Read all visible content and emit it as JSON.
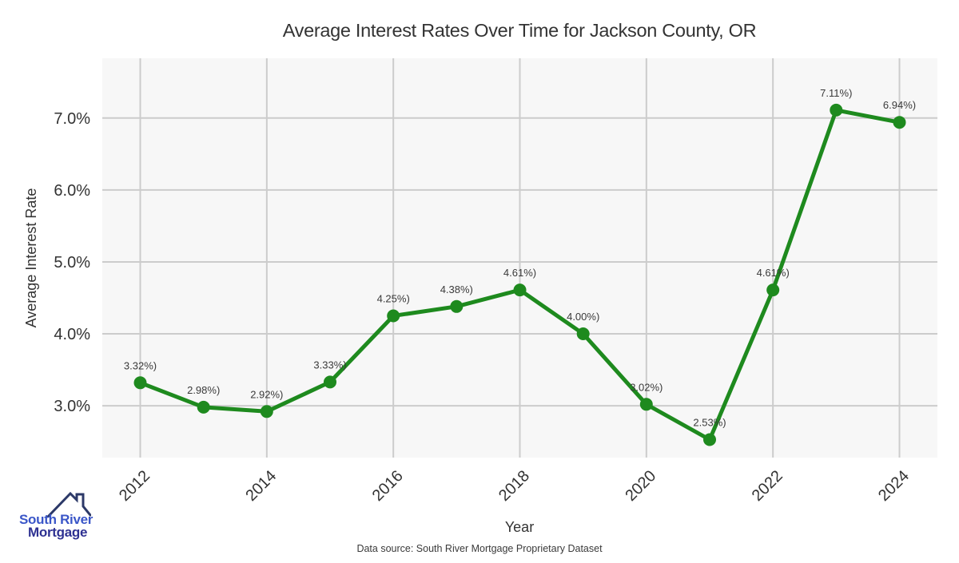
{
  "title": "Average Interest Rates Over Time for Jackson County, OR",
  "chart_data": {
    "type": "line",
    "title": "Average Interest Rates Over Time for Jackson County, OR",
    "xlabel": "Year",
    "ylabel": "Average Interest Rate",
    "x": [
      2012,
      2013,
      2014,
      2015,
      2016,
      2017,
      2018,
      2019,
      2020,
      2021,
      2022,
      2023,
      2024
    ],
    "values": [
      3.32,
      2.98,
      2.92,
      3.33,
      4.25,
      4.38,
      4.61,
      4.0,
      3.02,
      2.53,
      4.61,
      7.11,
      6.94
    ],
    "point_labels": [
      "3.32%)",
      "2.98%)",
      "2.92%)",
      "3.33%)",
      "4.25%)",
      "4.38%)",
      "4.61%)",
      "4.00%)",
      "3.02%)",
      "2.53%)",
      "4.61%)",
      "7.11%)",
      "6.94%)"
    ],
    "xlim": [
      2011.4,
      2024.6
    ],
    "ylim": [
      2.28,
      7.83
    ],
    "xticks": {
      "values": [
        2012,
        2014,
        2016,
        2018,
        2020,
        2022,
        2024
      ],
      "labels": [
        "2012",
        "2014",
        "2016",
        "2018",
        "2020",
        "2022",
        "2024"
      ]
    },
    "yticks": {
      "values": [
        3,
        4,
        5,
        6,
        7
      ],
      "labels": [
        "3.0%",
        "4.0%",
        "5.0%",
        "6.0%",
        "7.0%"
      ]
    },
    "grid": true,
    "legend": "none",
    "line_color": "#1e8a1e",
    "marker": "circle",
    "plot_bg": "#f7f7f7",
    "grid_color": "#cccccc",
    "text_color": "#333333",
    "label_color": "#3a3a3a"
  },
  "footer": {
    "source": "Data source: South River Mortgage Proprietary Dataset"
  },
  "logo": {
    "line1": "South River",
    "line2": "Mortgage",
    "color1": "#3a56c8",
    "color2": "#2e3192",
    "roof_color": "#2c3968"
  }
}
